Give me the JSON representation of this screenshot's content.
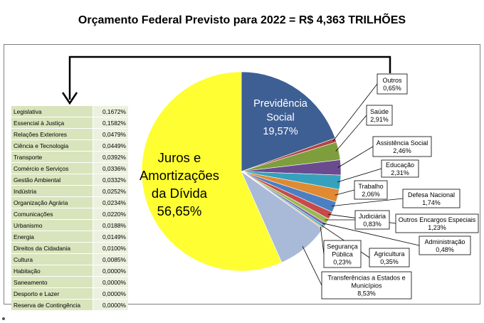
{
  "title": "Orçamento Federal Previsto para 2022 = R$ 4,363 TRILHÕES",
  "colors": {
    "previdencia": "#3e5f93",
    "juros": "#fefe33",
    "transferencias": "#a9b9d8",
    "outros": "#b04642",
    "saude": "#7e9e3e",
    "assistencia": "#6a4b90",
    "educacao": "#35a1bd",
    "trabalho": "#e08a32",
    "defesa": "#4c7fc1",
    "encargos": "#c84a48",
    "judiciaria": "#98b954",
    "administracao": "#8069a8",
    "agricultura": "#47b3cb",
    "seguranca": "#f3a561",
    "table_name_bg": "#d8e4bc",
    "table_value_bg": "#ebf1de"
  },
  "icons": {
    "arrow": "bracket-arrow-icon"
  },
  "chart_data": {
    "type": "pie",
    "title": "Orçamento Federal Previsto para 2022 = R$ 4,363 TRILHÕES",
    "slices": [
      {
        "key": "previdencia",
        "label": "Previdência Social",
        "value": 19.57,
        "display": "19,57%"
      },
      {
        "key": "outros",
        "label": "Outros",
        "value": 0.65,
        "display": "0,65%"
      },
      {
        "key": "saude",
        "label": "Saúde",
        "value": 2.91,
        "display": "2,91%"
      },
      {
        "key": "assistencia",
        "label": "Assistência Social",
        "value": 2.46,
        "display": "2,46%"
      },
      {
        "key": "educacao",
        "label": "Educação",
        "value": 2.31,
        "display": "2,31%"
      },
      {
        "key": "trabalho",
        "label": "Trabalho",
        "value": 2.06,
        "display": "2,06%"
      },
      {
        "key": "defesa",
        "label": "Defesa Nacional",
        "value": 1.74,
        "display": "1,74%"
      },
      {
        "key": "encargos",
        "label": "Outros Encargos Especiais",
        "value": 1.23,
        "display": "1,23%"
      },
      {
        "key": "judiciaria",
        "label": "Judiciária",
        "value": 0.83,
        "display": "0,83%"
      },
      {
        "key": "administracao",
        "label": "Administração",
        "value": 0.48,
        "display": "0,48%"
      },
      {
        "key": "agricultura",
        "label": "Agricultura",
        "value": 0.35,
        "display": "0,35%"
      },
      {
        "key": "seguranca",
        "label": "Segurança Pública",
        "value": 0.23,
        "display": "0,23%"
      },
      {
        "key": "transferencias",
        "label": "Transferências a Estados e Municípios",
        "value": 8.53,
        "display": "8,53%"
      },
      {
        "key": "juros",
        "label": "Juros e Amortizações da Dívida",
        "value": 56.65,
        "display": "56,65%"
      }
    ],
    "table": {
      "names": [
        "Legislativa",
        "Essencial à Justiça",
        "Relações Exteriores",
        "Ciência e Tecnologia",
        "Transporte",
        "Comércio e Serviços",
        "Gestão Ambiental",
        "Indústria",
        "Organização Agrária",
        "Comunicações",
        "Urbanismo",
        "Energia",
        "Direitos da Cidadania",
        "Cultura",
        "Habitação",
        "Saneamento",
        "Desporto e Lazer",
        "Reserva de Contingência"
      ],
      "values": [
        "0,1672%",
        "0,1582%",
        "0,0479%",
        "0,0449%",
        "0,0392%",
        "0,0336%",
        "0,0332%",
        "0,0252%",
        "0,0234%",
        "0,0220%",
        "0,0188%",
        "0,0149%",
        "0,0100%",
        "0,0085%",
        "0,0000%",
        "0,0000%",
        "0,0000%",
        "0,0000%"
      ]
    }
  }
}
